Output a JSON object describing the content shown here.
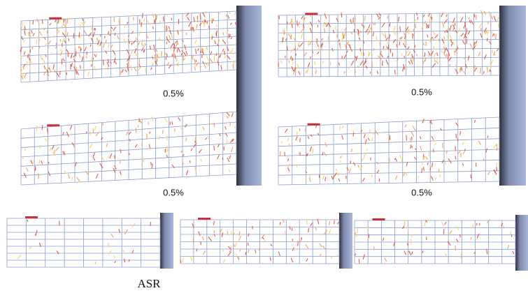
{
  "panels": [
    {
      "label": "0.5%"
    },
    {
      "label": "0.5%"
    },
    {
      "label": "0.5%"
    },
    {
      "label": "0.5%"
    }
  ],
  "bottom": {
    "label": "ASR"
  }
}
